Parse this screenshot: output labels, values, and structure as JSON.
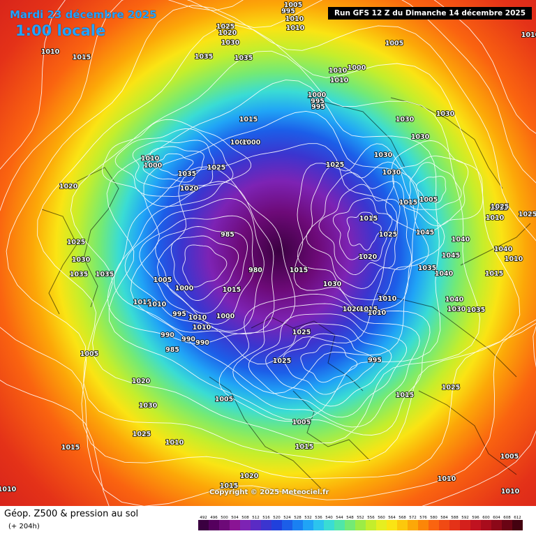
{
  "header": {
    "date": "Mardi 23 décembre 2025",
    "local_time": "1:00 locale",
    "run": "Run GFS 12 Z du Dimanche 14 décembre 2025"
  },
  "copyright": "Copyright © 2025 Meteociel.fr",
  "footer": {
    "title": "Géop. Z500 & pression au sol",
    "subtitle": "(+ 204h)"
  },
  "legend": {
    "ticks": [
      "492",
      "496",
      "500",
      "504",
      "508",
      "512",
      "516",
      "520",
      "524",
      "528",
      "532",
      "536",
      "540",
      "544",
      "548",
      "552",
      "556",
      "560",
      "564",
      "568",
      "572",
      "576",
      "580",
      "584",
      "588",
      "592",
      "596",
      "600",
      "604",
      "608",
      "612"
    ],
    "colors": [
      "#3a0040",
      "#55005e",
      "#6d0a78",
      "#8a1494",
      "#7d23b4",
      "#5a2bc4",
      "#3b35cf",
      "#2040dc",
      "#1c5ee8",
      "#1a80f2",
      "#20a4f6",
      "#2cc4ee",
      "#3adcd4",
      "#50e6a8",
      "#74ea74",
      "#9cec46",
      "#c4ee2c",
      "#e6ee20",
      "#fae414",
      "#fcc80c",
      "#fca808",
      "#fc8608",
      "#fa6410",
      "#f04a14",
      "#e43218",
      "#d4201c",
      "#c01220",
      "#a80c1c",
      "#8c0818",
      "#6a0414",
      "#440210"
    ]
  },
  "pressure_labels": [
    "1005",
    "995",
    "1010",
    "1010",
    "1025",
    "1020",
    "1030",
    "1035",
    "1035",
    "1015",
    "1010",
    "1000",
    "1005",
    "1000",
    "995",
    "995",
    "1015",
    "1005",
    "1000",
    "1030",
    "1030",
    "1030",
    "1030",
    "1030",
    "1010",
    "1010",
    "1025",
    "1035",
    "1025",
    "1010",
    "1020",
    "1000",
    "1020",
    "1025",
    "1030",
    "1035",
    "1035",
    "1015",
    "1015",
    "1005",
    "1045",
    "1040",
    "1045",
    "1035",
    "1040",
    "1020",
    "1025",
    "1015",
    "985",
    "985",
    "990",
    "980",
    "1015",
    "1005",
    "1000",
    "995",
    "1015",
    "1010",
    "1000",
    "1010",
    "1010",
    "990",
    "990",
    "995",
    "1030",
    "1040",
    "1035",
    "1040",
    "1015",
    "1020",
    "1015",
    "1010",
    "1025",
    "1025",
    "1030",
    "1010",
    "1020",
    "1030",
    "1005",
    "1025",
    "1015",
    "1010",
    "1005",
    "1015",
    "1020",
    "1015",
    "1010",
    "1010",
    "1010",
    "1005",
    "1015",
    "1010",
    "1025",
    "1025",
    "1015",
    "1010",
    "1025",
    "1010",
    "1005"
  ]
}
